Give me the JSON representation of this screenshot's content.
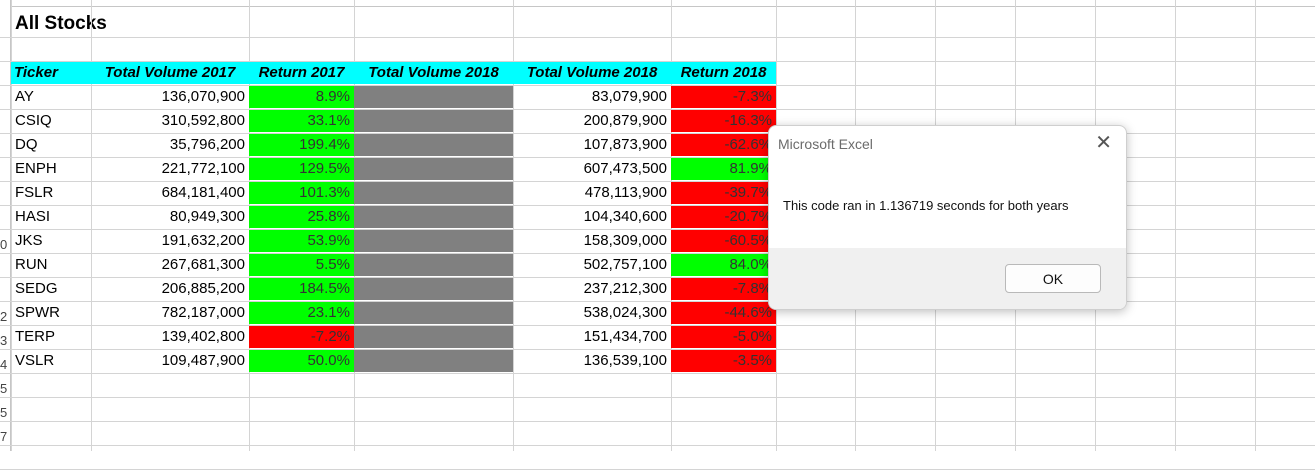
{
  "sheet": {
    "title": "All Stocks",
    "headers": [
      "Ticker",
      "Total Volume 2017",
      "Return 2017",
      "Total Volume 2018",
      "Total Volume 2018",
      "Return 2018"
    ],
    "row_numbers": [
      "0",
      "",
      "2",
      "3",
      "4",
      "5",
      "5",
      "7",
      "3"
    ],
    "rows": [
      {
        "ticker": "AY",
        "vol2017": "136,070,900",
        "ret2017": "8.9%",
        "vol2018": "83,079,900",
        "ret2018": "-7.3%",
        "ret2017_color": "green",
        "ret2018_color": "red"
      },
      {
        "ticker": "CSIQ",
        "vol2017": "310,592,800",
        "ret2017": "33.1%",
        "vol2018": "200,879,900",
        "ret2018": "-16.3%",
        "ret2017_color": "green",
        "ret2018_color": "red"
      },
      {
        "ticker": "DQ",
        "vol2017": "35,796,200",
        "ret2017": "199.4%",
        "vol2018": "107,873,900",
        "ret2018": "-62.6%",
        "ret2017_color": "green",
        "ret2018_color": "red"
      },
      {
        "ticker": "ENPH",
        "vol2017": "221,772,100",
        "ret2017": "129.5%",
        "vol2018": "607,473,500",
        "ret2018": "81.9%",
        "ret2017_color": "green",
        "ret2018_color": "green"
      },
      {
        "ticker": "FSLR",
        "vol2017": "684,181,400",
        "ret2017": "101.3%",
        "vol2018": "478,113,900",
        "ret2018": "-39.7%",
        "ret2017_color": "green",
        "ret2018_color": "red"
      },
      {
        "ticker": "HASI",
        "vol2017": "80,949,300",
        "ret2017": "25.8%",
        "vol2018": "104,340,600",
        "ret2018": "-20.7%",
        "ret2017_color": "green",
        "ret2018_color": "red"
      },
      {
        "ticker": "JKS",
        "vol2017": "191,632,200",
        "ret2017": "53.9%",
        "vol2018": "158,309,000",
        "ret2018": "-60.5%",
        "ret2017_color": "green",
        "ret2018_color": "red"
      },
      {
        "ticker": "RUN",
        "vol2017": "267,681,300",
        "ret2017": "5.5%",
        "vol2018": "502,757,100",
        "ret2018": "84.0%",
        "ret2017_color": "green",
        "ret2018_color": "green"
      },
      {
        "ticker": "SEDG",
        "vol2017": "206,885,200",
        "ret2017": "184.5%",
        "vol2018": "237,212,300",
        "ret2018": "-7.8%",
        "ret2017_color": "green",
        "ret2018_color": "red"
      },
      {
        "ticker": "SPWR",
        "vol2017": "782,187,000",
        "ret2017": "23.1%",
        "vol2018": "538,024,300",
        "ret2018": "-44.6%",
        "ret2017_color": "green",
        "ret2018_color": "red"
      },
      {
        "ticker": "TERP",
        "vol2017": "139,402,800",
        "ret2017": "-7.2%",
        "vol2018": "151,434,700",
        "ret2018": "-5.0%",
        "ret2017_color": "red",
        "ret2018_color": "red"
      },
      {
        "ticker": "VSLR",
        "vol2017": "109,487,900",
        "ret2017": "50.0%",
        "vol2018": "136,539,100",
        "ret2018": "-3.5%",
        "ret2017_color": "green",
        "ret2018_color": "red"
      }
    ]
  },
  "dialog": {
    "title": "Microsoft Excel",
    "close_glyph": "✕",
    "message": "This code ran in 1.136719 seconds for both years",
    "ok_label": "OK"
  }
}
